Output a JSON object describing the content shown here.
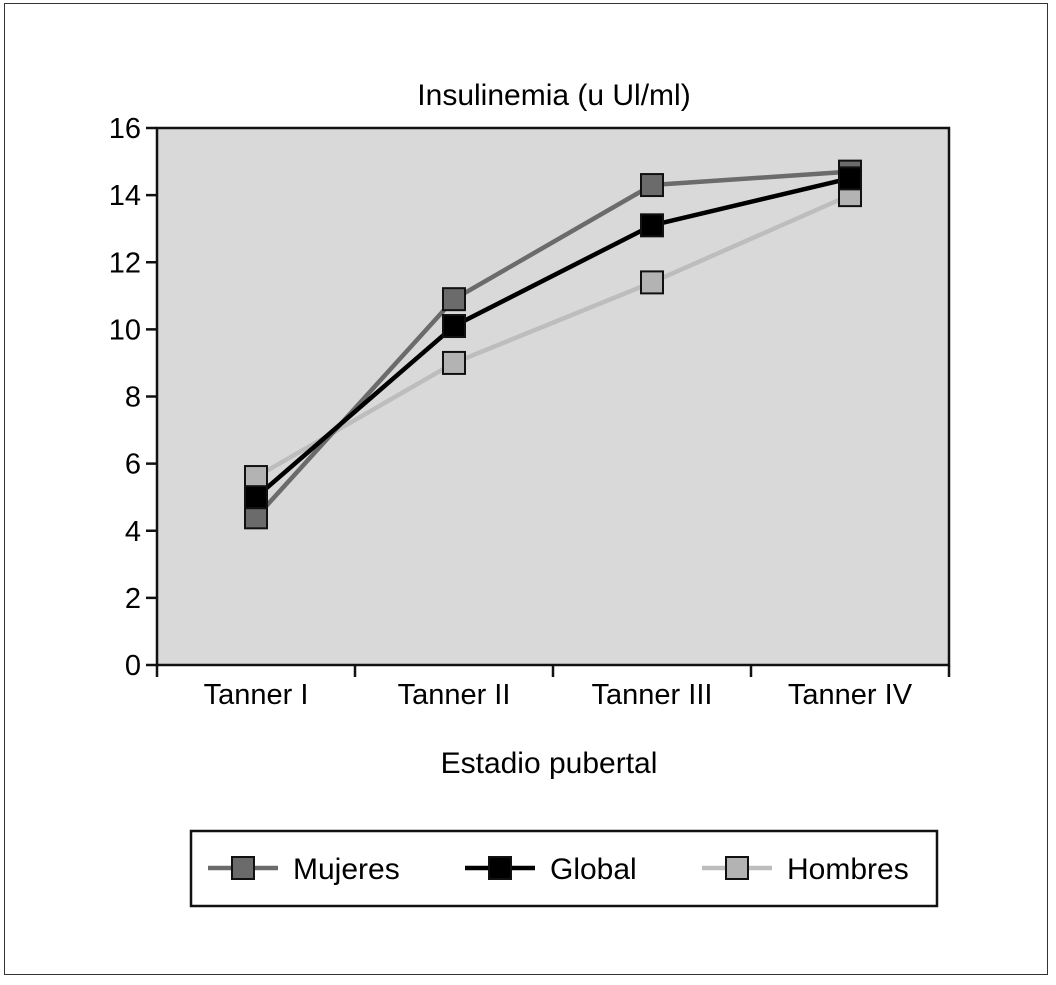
{
  "chart_data": {
    "type": "line",
    "title": "Insulinemia (u Ul/ml)",
    "xlabel": "Estadio pubertal",
    "ylabel": "",
    "categories": [
      "Tanner I",
      "Tanner II",
      "Tanner III",
      "Tanner IV"
    ],
    "ylim": [
      0,
      16
    ],
    "yticks": [
      0,
      2,
      4,
      6,
      8,
      10,
      12,
      14,
      16
    ],
    "grid": false,
    "plot_background": "#d9d9d9",
    "legend_position": "bottom",
    "series": [
      {
        "name": "Mujeres",
        "values": [
          4.4,
          10.9,
          14.3,
          14.7
        ],
        "line_color": "#6b6b6b",
        "marker_color": "#6b6b6b"
      },
      {
        "name": "Global",
        "values": [
          5.0,
          10.1,
          13.1,
          14.5
        ],
        "line_color": "#000000",
        "marker_color": "#000000"
      },
      {
        "name": "Hombres",
        "values": [
          5.6,
          9.0,
          11.4,
          14.0
        ],
        "line_color": "#bdbdbd",
        "marker_color": "#b3b3b3"
      }
    ]
  }
}
